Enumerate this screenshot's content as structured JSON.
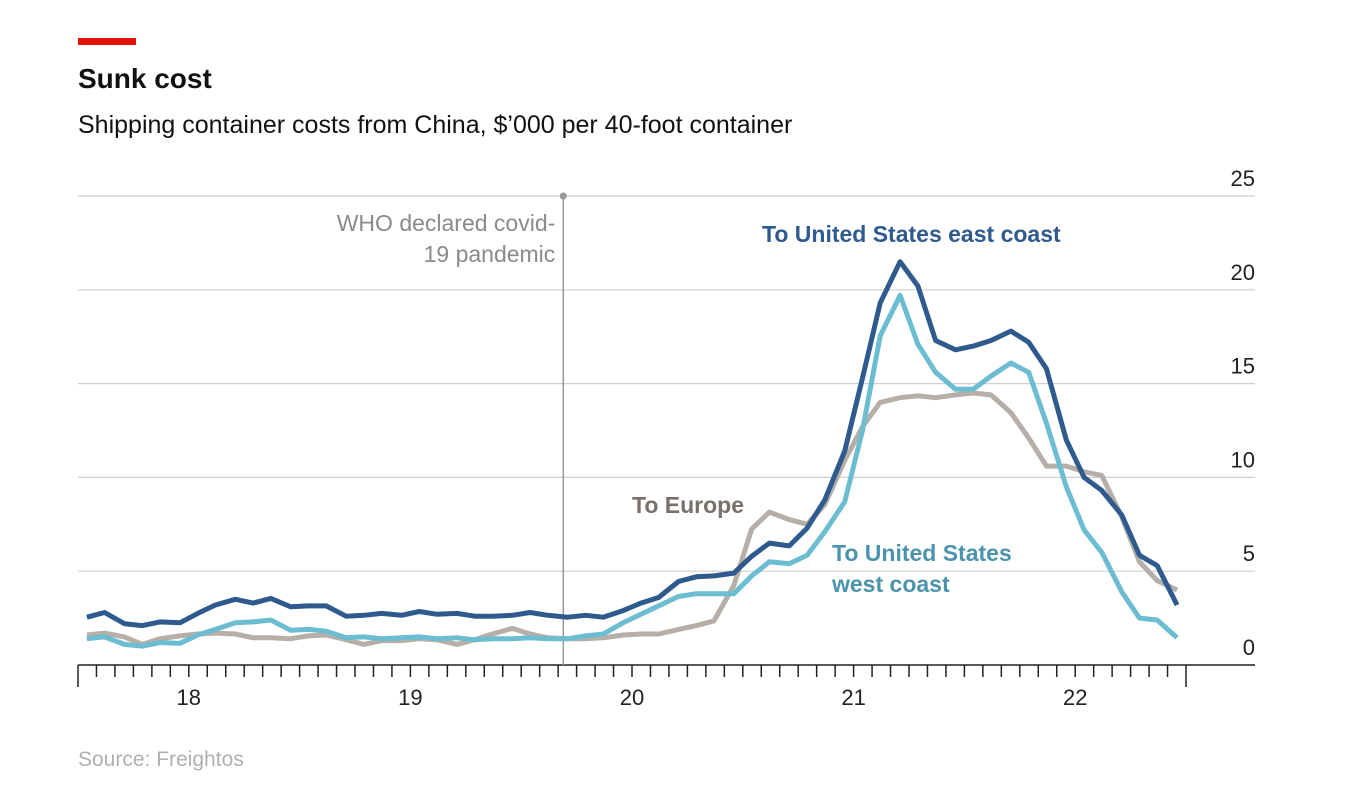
{
  "chart_data": {
    "type": "line",
    "title": "Sunk cost",
    "subtitle": "Shipping container costs from China, $’000 per 40-foot container",
    "source": "Source: Freightos",
    "x": [
      2018.04,
      2018.12,
      2018.21,
      2018.29,
      2018.37,
      2018.46,
      2018.54,
      2018.62,
      2018.71,
      2018.79,
      2018.87,
      2018.96,
      2019.04,
      2019.12,
      2019.21,
      2019.29,
      2019.37,
      2019.46,
      2019.54,
      2019.62,
      2019.71,
      2019.79,
      2019.87,
      2019.96,
      2020.04,
      2020.12,
      2020.21,
      2020.29,
      2020.37,
      2020.46,
      2020.54,
      2020.62,
      2020.71,
      2020.79,
      2020.87,
      2020.96,
      2021.04,
      2021.12,
      2021.21,
      2021.29,
      2021.37,
      2021.46,
      2021.54,
      2021.62,
      2021.71,
      2021.79,
      2021.87,
      2021.96,
      2022.04,
      2022.12,
      2022.21,
      2022.29,
      2022.37,
      2022.46,
      2022.54,
      2022.62,
      2022.71,
      2022.79,
      2022.87,
      2022.96
    ],
    "series": [
      {
        "name": "To United States east coast",
        "color": "#2f5a8e",
        "values": [
          2.55,
          2.8,
          2.2,
          2.1,
          2.3,
          2.25,
          2.75,
          3.2,
          3.5,
          3.3,
          3.55,
          3.1,
          3.15,
          3.15,
          2.6,
          2.65,
          2.75,
          2.65,
          2.85,
          2.7,
          2.75,
          2.6,
          2.6,
          2.65,
          2.8,
          2.65,
          2.55,
          2.65,
          2.55,
          2.9,
          3.3,
          3.6,
          4.45,
          4.7,
          4.75,
          4.9,
          5.8,
          6.5,
          6.35,
          7.3,
          8.8,
          11.4,
          15.3,
          19.3,
          21.5,
          20.2,
          17.3,
          16.8,
          17.0,
          17.3,
          17.8,
          17.2,
          15.8,
          12.0,
          10.0,
          9.3,
          8.0,
          5.85,
          5.3,
          3.2
        ]
      },
      {
        "name": "To United States west coast",
        "color": "#6cbdd2",
        "values": [
          1.4,
          1.5,
          1.1,
          1.0,
          1.2,
          1.15,
          1.6,
          1.9,
          2.25,
          2.3,
          2.4,
          1.85,
          1.9,
          1.8,
          1.45,
          1.5,
          1.4,
          1.45,
          1.5,
          1.4,
          1.45,
          1.35,
          1.4,
          1.4,
          1.45,
          1.4,
          1.4,
          1.55,
          1.65,
          2.25,
          2.7,
          3.15,
          3.65,
          3.8,
          3.8,
          3.8,
          4.75,
          5.5,
          5.4,
          5.85,
          7.1,
          8.7,
          12.5,
          17.55,
          19.7,
          17.1,
          15.6,
          14.7,
          14.7,
          15.4,
          16.1,
          15.6,
          12.9,
          9.5,
          7.2,
          6.0,
          3.9,
          2.5,
          2.4,
          1.45
        ]
      },
      {
        "name": "To Europe",
        "color": "#b5afa7",
        "values": [
          1.6,
          1.7,
          1.5,
          1.1,
          1.4,
          1.55,
          1.65,
          1.7,
          1.65,
          1.45,
          1.45,
          1.4,
          1.55,
          1.6,
          1.35,
          1.1,
          1.3,
          1.3,
          1.4,
          1.35,
          1.1,
          1.35,
          1.65,
          1.95,
          1.65,
          1.45,
          1.4,
          1.4,
          1.45,
          1.6,
          1.65,
          1.65,
          1.9,
          2.1,
          2.35,
          4.25,
          7.25,
          8.15,
          7.75,
          7.5,
          8.55,
          10.9,
          12.7,
          14.0,
          14.25,
          14.35,
          14.25,
          14.4,
          14.5,
          14.4,
          13.45,
          12.1,
          10.6,
          10.6,
          10.3,
          10.1,
          7.9,
          5.5,
          4.5,
          4.0
        ]
      }
    ],
    "xlim": [
      2018,
      2023
    ],
    "xticks": [
      {
        "value": 2018.5,
        "label": "18"
      },
      {
        "value": 2019.5,
        "label": "19"
      },
      {
        "value": 2020.5,
        "label": "20"
      },
      {
        "value": 2021.5,
        "label": "21"
      },
      {
        "value": 2022.5,
        "label": "22"
      }
    ],
    "ylim": [
      0,
      25
    ],
    "yticks": [
      0,
      5,
      10,
      15,
      20,
      25
    ],
    "grid": true,
    "annotations": [
      {
        "text": "WHO declared covid-19 pandemic",
        "x": 2020.19
      }
    ]
  }
}
